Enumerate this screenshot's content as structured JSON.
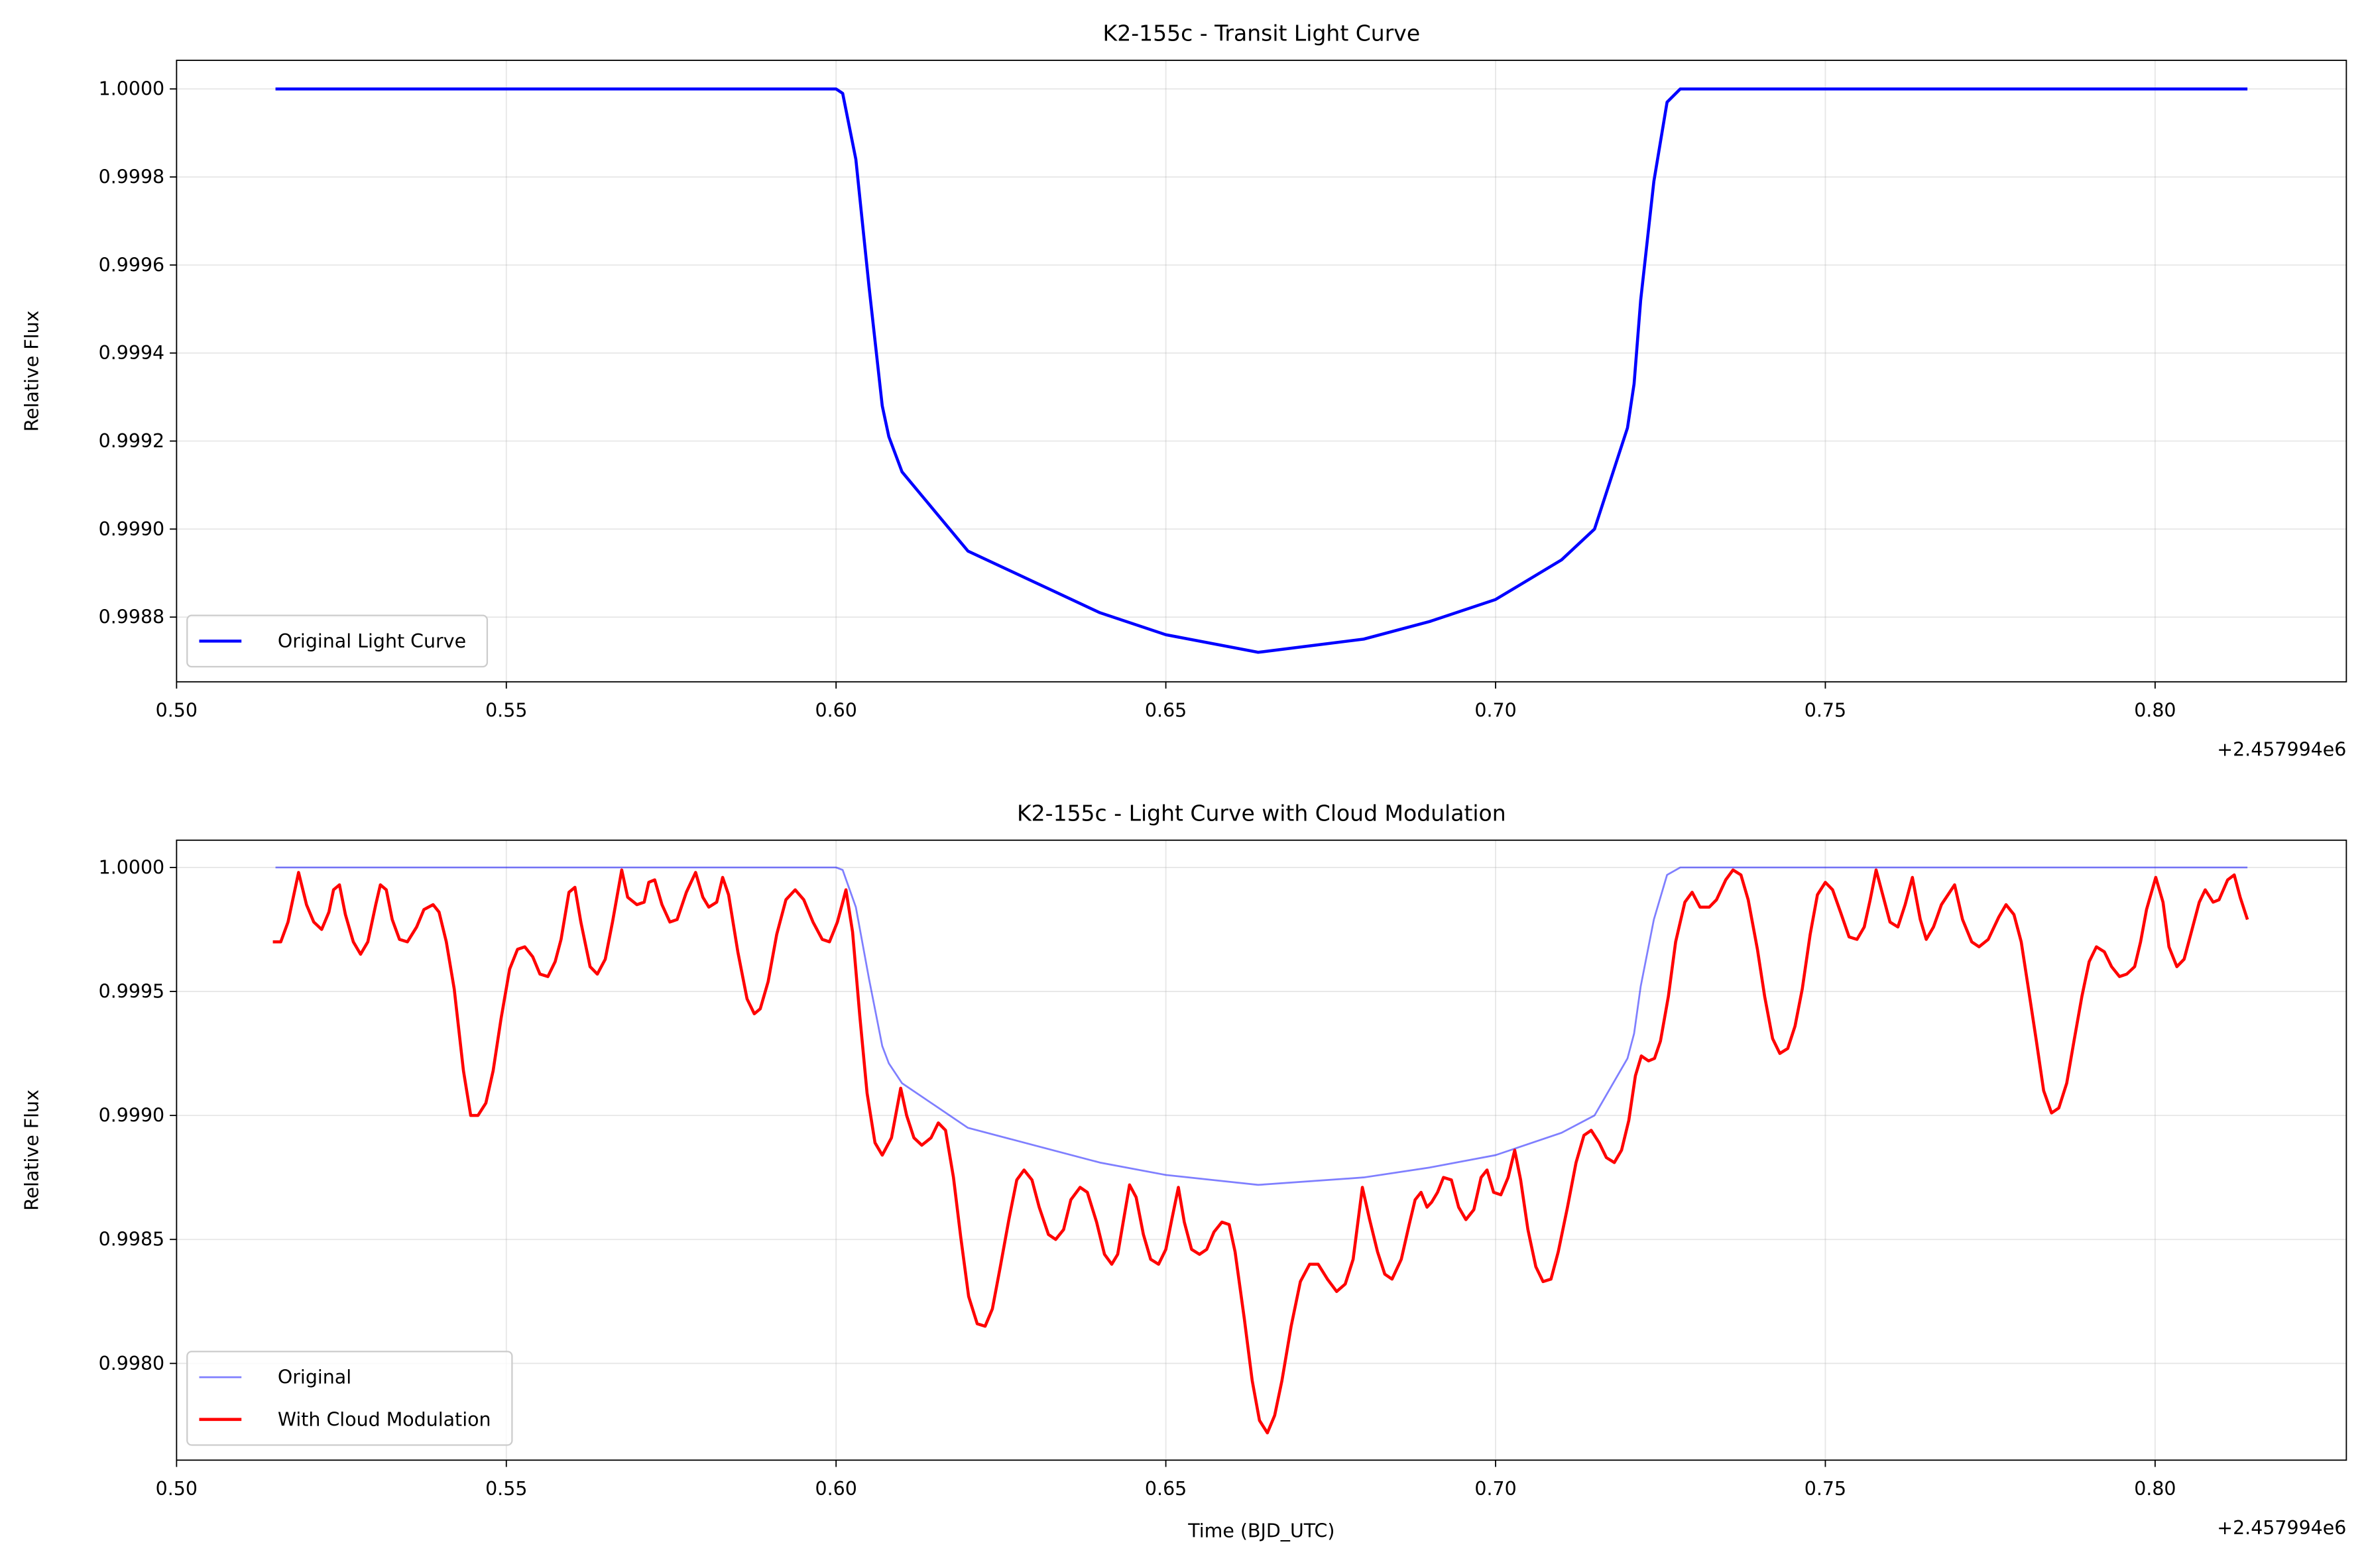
{
  "chart_data": [
    {
      "type": "line",
      "title": "K2-155c - Transit Light Curve",
      "ylabel": "Relative Flux",
      "x_offset_text": "+2.457994e6",
      "xlim": [
        0.5,
        0.829
      ],
      "ylim": [
        0.998653,
        1.000065
      ],
      "xticks": [
        {
          "value": 0.5,
          "label": "0.50"
        },
        0.55,
        {
          "value": 0.6,
          "label": "0.60"
        },
        0.65,
        {
          "value": 0.7,
          "label": "0.70"
        },
        0.75,
        {
          "value": 0.8,
          "label": "0.80"
        }
      ],
      "yticks": [
        0.9988,
        {
          "value": 0.999,
          "label": "0.9990"
        },
        0.9992,
        0.9994,
        0.9996,
        0.9998,
        {
          "value": 1,
          "label": "1.0000"
        }
      ],
      "grid": true,
      "legend": "lower left",
      "series": [
        {
          "name": "Original Light Curve",
          "color": "#0000ff",
          "x": [
            0.515,
            0.55,
            0.6,
            0.601,
            0.603,
            0.605,
            0.607,
            0.608,
            0.61,
            0.615,
            0.62,
            0.63,
            0.64,
            0.65,
            0.664,
            0.68,
            0.69,
            0.7,
            0.71,
            0.715,
            0.72,
            0.721,
            0.722,
            0.724,
            0.726,
            0.728,
            0.78,
            0.814
          ],
          "values": [
            1,
            1,
            1,
            0.99999,
            0.99984,
            0.99955,
            0.99928,
            0.99921,
            0.99913,
            0.99904,
            0.99895,
            0.99888,
            0.99881,
            0.99876,
            0.99872,
            0.99875,
            0.99879,
            0.99884,
            0.99893,
            0.999,
            0.99923,
            0.99933,
            0.99952,
            0.99979,
            0.99997,
            1,
            1,
            1
          ]
        }
      ]
    },
    {
      "type": "line",
      "title": "K2-155c - Light Curve with Cloud Modulation",
      "ylabel": "Relative Flux",
      "xlabel": "Time (BJD_UTC)",
      "x_offset_text": "+2.457994e6",
      "xlim": [
        0.5,
        0.829
      ],
      "ylim": [
        0.99761,
        1.00011
      ],
      "xticks": [
        {
          "value": 0.5,
          "label": "0.50"
        },
        0.55,
        {
          "value": 0.6,
          "label": "0.60"
        },
        0.65,
        {
          "value": 0.7,
          "label": "0.70"
        },
        0.75,
        {
          "value": 0.8,
          "label": "0.80"
        }
      ],
      "yticks": [
        {
          "value": 0.998,
          "label": "0.9980"
        },
        0.9985,
        {
          "value": 0.999,
          "label": "0.9990"
        },
        0.9995,
        {
          "value": 1,
          "label": "1.0000"
        }
      ],
      "grid": true,
      "legend": "lower left",
      "series": [
        {
          "name": "Original",
          "color": "#0000ff",
          "alpha": 0.5,
          "x": [
            0.515,
            0.55,
            0.6,
            0.601,
            0.603,
            0.605,
            0.607,
            0.608,
            0.61,
            0.615,
            0.62,
            0.63,
            0.64,
            0.65,
            0.664,
            0.68,
            0.69,
            0.7,
            0.71,
            0.715,
            0.72,
            0.721,
            0.722,
            0.724,
            0.726,
            0.728,
            0.78,
            0.814
          ],
          "values": [
            1,
            1,
            1,
            0.99999,
            0.99984,
            0.99955,
            0.99928,
            0.99921,
            0.99913,
            0.99904,
            0.99895,
            0.99888,
            0.99881,
            0.99876,
            0.99872,
            0.99875,
            0.99879,
            0.99884,
            0.99893,
            0.999,
            0.99923,
            0.99933,
            0.99952,
            0.99979,
            0.99997,
            1,
            1,
            1
          ]
        },
        {
          "name": "With Cloud Modulation",
          "color": "#ff0000",
          "x": [
            0.5146,
            0.5158,
            0.5169,
            0.5185,
            0.5197,
            0.5208,
            0.522,
            0.5231,
            0.5238,
            0.5247,
            0.5256,
            0.5268,
            0.5279,
            0.529,
            0.5302,
            0.5309,
            0.5318,
            0.5327,
            0.5338,
            0.535,
            0.5364,
            0.5375,
            0.5389,
            0.5398,
            0.5409,
            0.5421,
            0.5435,
            0.5446,
            0.5457,
            0.5469,
            0.548,
            0.5492,
            0.5505,
            0.5517,
            0.5528,
            0.554,
            0.5551,
            0.5563,
            0.5574,
            0.5583,
            0.5595,
            0.5604,
            0.5613,
            0.5627,
            0.5638,
            0.565,
            0.5661,
            0.5675,
            0.5684,
            0.5698,
            0.5709,
            0.5716,
            0.5725,
            0.5736,
            0.5748,
            0.5759,
            0.5773,
            0.5787,
            0.5798,
            0.5807,
            0.5819,
            0.5828,
            0.5837,
            0.5851,
            0.5865,
            0.5876,
            0.5885,
            0.5897,
            0.591,
            0.5924,
            0.5938,
            0.5951,
            0.5965,
            0.5979,
            0.599,
            0.6002,
            0.6015,
            0.6025,
            0.6036,
            0.6047,
            0.6059,
            0.607,
            0.6084,
            0.6098,
            0.6107,
            0.6118,
            0.613,
            0.6144,
            0.6155,
            0.6166,
            0.6178,
            0.6189,
            0.6201,
            0.6214,
            0.6226,
            0.6237,
            0.6249,
            0.6262,
            0.6274,
            0.6285,
            0.6297,
            0.6308,
            0.6322,
            0.6333,
            0.6345,
            0.6356,
            0.637,
            0.6381,
            0.6395,
            0.6407,
            0.6418,
            0.6427,
            0.6436,
            0.6445,
            0.6455,
            0.6466,
            0.6477,
            0.6489,
            0.65,
            0.6509,
            0.6519,
            0.6528,
            0.6539,
            0.6551,
            0.6562,
            0.6573,
            0.6585,
            0.6596,
            0.6605,
            0.6619,
            0.6631,
            0.6642,
            0.6654,
            0.6665,
            0.6676,
            0.669,
            0.6704,
            0.6718,
            0.6731,
            0.6745,
            0.6759,
            0.6772,
            0.6784,
            0.6798,
            0.6809,
            0.6821,
            0.6832,
            0.6843,
            0.6857,
            0.6869,
            0.6878,
            0.6887,
            0.6896,
            0.6903,
            0.6912,
            0.6921,
            0.6933,
            0.6944,
            0.6955,
            0.6967,
            0.6978,
            0.6987,
            0.6997,
            0.7008,
            0.7019,
            0.7029,
            0.7038,
            0.7049,
            0.7061,
            0.7072,
            0.7084,
            0.7095,
            0.7109,
            0.7122,
            0.7134,
            0.7145,
            0.7157,
            0.7168,
            0.718,
            0.7191,
            0.7202,
            0.7212,
            0.7221,
            0.7232,
            0.7241,
            0.725,
            0.7262,
            0.7273,
            0.7287,
            0.7298,
            0.731,
            0.7324,
            0.7335,
            0.7349,
            0.736,
            0.7372,
            0.7383,
            0.7397,
            0.7408,
            0.742,
            0.7431,
            0.7443,
            0.7454,
            0.7465,
            0.7477,
            0.7488,
            0.75,
            0.7511,
            0.7523,
            0.7536,
            0.7548,
            0.7559,
            0.7568,
            0.7577,
            0.7587,
            0.7598,
            0.761,
            0.7621,
            0.7632,
            0.7644,
            0.7653,
            0.7664,
            0.7676,
            0.7696,
            0.7708,
            0.7722,
            0.7733,
            0.7747,
            0.7763,
            0.7774,
            0.7786,
            0.7797,
            0.7808,
            0.782,
            0.7831,
            0.7843,
            0.7854,
            0.7866,
            0.7877,
            0.7889,
            0.79,
            0.7911,
            0.7923,
            0.7934,
            0.7946,
            0.7957,
            0.7969,
            0.7978,
            0.7987,
            0.8001,
            0.8012,
            0.8021,
            0.8033,
            0.8044,
            0.8055,
            0.8067,
            0.8076,
            0.8088,
            0.8097,
            0.811,
            0.812,
            0.8129,
            0.814
          ],
          "values": [
            0.9997,
            0.9997,
            0.99978,
            0.99998,
            0.99985,
            0.99978,
            0.99975,
            0.99982,
            0.99991,
            0.99993,
            0.99981,
            0.9997,
            0.99965,
            0.9997,
            0.99985,
            0.99993,
            0.99991,
            0.99979,
            0.99971,
            0.9997,
            0.99976,
            0.99983,
            0.99985,
            0.99982,
            0.9997,
            0.99951,
            0.99918,
            0.999,
            0.999,
            0.99905,
            0.99918,
            0.99939,
            0.99959,
            0.99967,
            0.99968,
            0.99964,
            0.99957,
            0.99956,
            0.99962,
            0.99971,
            0.9999,
            0.99992,
            0.99978,
            0.9996,
            0.99957,
            0.99963,
            0.99978,
            0.99999,
            0.99988,
            0.99985,
            0.99986,
            0.99994,
            0.99995,
            0.99985,
            0.99978,
            0.99979,
            0.9999,
            0.99998,
            0.99988,
            0.99984,
            0.99986,
            0.99996,
            0.99989,
            0.99966,
            0.99947,
            0.99941,
            0.99943,
            0.99954,
            0.99973,
            0.99987,
            0.99991,
            0.99987,
            0.99978,
            0.99971,
            0.9997,
            0.99978,
            0.99991,
            0.99974,
            0.9994,
            0.99909,
            0.99889,
            0.99884,
            0.99891,
            0.99911,
            0.999,
            0.99891,
            0.99888,
            0.99891,
            0.99897,
            0.99894,
            0.99875,
            0.99851,
            0.99827,
            0.99816,
            0.99815,
            0.99822,
            0.99839,
            0.99858,
            0.99874,
            0.99878,
            0.99874,
            0.99863,
            0.99852,
            0.9985,
            0.99854,
            0.99866,
            0.99871,
            0.99869,
            0.99857,
            0.99844,
            0.9984,
            0.99844,
            0.99858,
            0.99872,
            0.99867,
            0.99852,
            0.99842,
            0.9984,
            0.99846,
            0.99858,
            0.99871,
            0.99857,
            0.99846,
            0.99844,
            0.99846,
            0.99853,
            0.99857,
            0.99856,
            0.99845,
            0.99818,
            0.99793,
            0.99777,
            0.99772,
            0.99779,
            0.99793,
            0.99815,
            0.99833,
            0.9984,
            0.9984,
            0.99834,
            0.99829,
            0.99832,
            0.99842,
            0.99871,
            0.99858,
            0.99845,
            0.99836,
            0.99834,
            0.99842,
            0.99856,
            0.99866,
            0.99869,
            0.99863,
            0.99865,
            0.99869,
            0.99875,
            0.99874,
            0.99863,
            0.99858,
            0.99862,
            0.99875,
            0.99878,
            0.99869,
            0.99868,
            0.99875,
            0.99886,
            0.99874,
            0.99854,
            0.99839,
            0.99833,
            0.99834,
            0.99845,
            0.99863,
            0.99881,
            0.99892,
            0.99894,
            0.99889,
            0.99883,
            0.99881,
            0.99886,
            0.99898,
            0.99916,
            0.99924,
            0.99922,
            0.99923,
            0.9993,
            0.99948,
            0.9997,
            0.99986,
            0.9999,
            0.99984,
            0.99984,
            0.99987,
            0.99995,
            0.99999,
            0.99997,
            0.99987,
            0.99967,
            0.99948,
            0.99931,
            0.99925,
            0.99927,
            0.99936,
            0.99951,
            0.99973,
            0.99989,
            0.99994,
            0.99991,
            0.99982,
            0.99972,
            0.99971,
            0.99976,
            0.99987,
            0.99999,
            0.99989,
            0.99978,
            0.99976,
            0.99985,
            0.99996,
            0.99979,
            0.99971,
            0.99976,
            0.99985,
            0.99993,
            0.99979,
            0.9997,
            0.99968,
            0.99971,
            0.9998,
            0.99985,
            0.99981,
            0.9997,
            0.99951,
            0.9993,
            0.9991,
            0.99901,
            0.99903,
            0.99913,
            0.9993,
            0.99948,
            0.99962,
            0.99968,
            0.99966,
            0.9996,
            0.99956,
            0.99957,
            0.9996,
            0.9997,
            0.99983,
            0.99996,
            0.99986,
            0.99968,
            0.9996,
            0.99963,
            0.99974,
            0.99986,
            0.99991,
            0.99986,
            0.99987,
            0.99995,
            0.99997,
            0.99988,
            0.99979
          ]
        }
      ]
    }
  ]
}
